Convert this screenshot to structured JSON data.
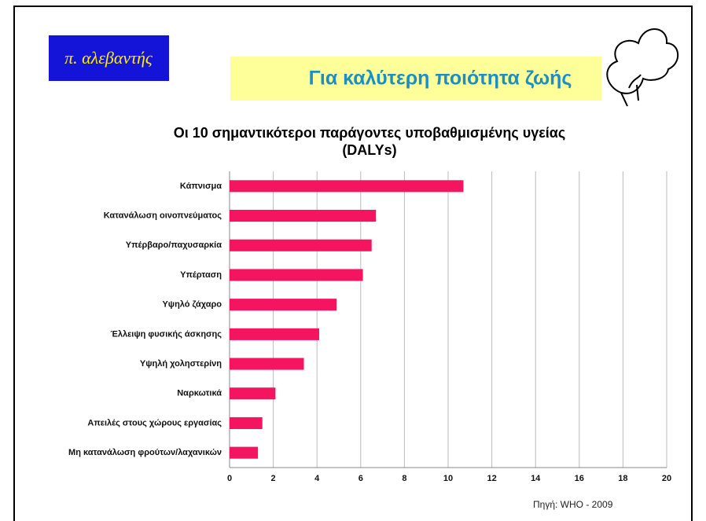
{
  "logo": "π. αλεβαντής",
  "banner": "Για καλύτερη ποιότητα ζωής",
  "source": "Πηγή: WHO - 2009",
  "chart_data": {
    "type": "barh",
    "title": [
      "Οι 10 σημαντικότεροι παράγοντες υποβαθμισμένης υγείας",
      "(DALYs)"
    ],
    "categories": [
      "Κάπνισμα",
      "Κατανάλωση οινοπνεύματος",
      "Υπέρβαρο/παχυσαρκία",
      "Υπέρταση",
      "Υψηλό ζάχαρο",
      "Έλλειψη φυσικής άσκησης",
      "Υψηλή χοληστερίνη",
      "Ναρκωτικά",
      "Απειλές στους χώρους εργασίας",
      "Μη κατανάλωση φρούτων/λαχανικών"
    ],
    "values": [
      10.7,
      6.7,
      6.5,
      6.1,
      4.9,
      4.1,
      3.4,
      2.1,
      1.5,
      1.3
    ],
    "color": "#f5145f",
    "xlim": [
      0,
      20
    ],
    "xticks": [
      0,
      2,
      4,
      6,
      8,
      10,
      12,
      14,
      16,
      18,
      20
    ],
    "grid": true
  }
}
